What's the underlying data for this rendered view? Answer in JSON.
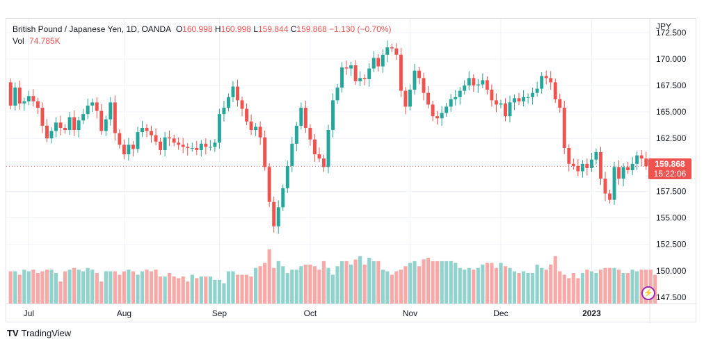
{
  "legend": {
    "symbol": "British Pound / Japanese Yen, 1D, OANDA",
    "open_label": "O",
    "open": "160.998",
    "high_label": "H",
    "high": "160.998",
    "low_label": "L",
    "low": "159.844",
    "close_label": "C",
    "close": "159.868",
    "change": "−1.130 (−0.70%)",
    "vol_label": "Vol",
    "vol": "74.785K"
  },
  "price_axis_currency": "JPY",
  "current": {
    "price": "159.868",
    "countdown": "15:22:06"
  },
  "branding": "TradingView",
  "colors": {
    "up": "#26a69a",
    "down": "#ef5350",
    "vol_up": "#92d2cc",
    "vol_down": "#f7a9a7"
  },
  "chart_data": {
    "type": "candlestick",
    "instrument": "GBP/JPY",
    "interval": "1D",
    "y_ticks": [
      172.5,
      170.0,
      167.5,
      165.0,
      162.5,
      160.0,
      157.5,
      155.0,
      152.5,
      150.0,
      147.5
    ],
    "ylim": [
      146.9,
      173.8
    ],
    "x_labels": [
      {
        "label": "Jul",
        "i": 4
      },
      {
        "label": "Aug",
        "i": 25
      },
      {
        "label": "Sep",
        "i": 46
      },
      {
        "label": "Oct",
        "i": 66
      },
      {
        "label": "Nov",
        "i": 88
      },
      {
        "label": "Dec",
        "i": 108
      },
      {
        "label": "2023",
        "i": 128
      }
    ],
    "last_price_line": 159.868,
    "closes": [
      165.6,
      167.3,
      165.8,
      166.0,
      166.5,
      166.0,
      165.4,
      163.7,
      162.5,
      163.2,
      164.0,
      163.5,
      163.3,
      164.5,
      163.3,
      164.2,
      164.8,
      165.6,
      165.9,
      165.1,
      163.2,
      164.3,
      165.9,
      163.0,
      161.9,
      161.0,
      161.9,
      161.5,
      163.1,
      163.5,
      163.2,
      162.8,
      162.2,
      161.4,
      162.6,
      162.5,
      162.1,
      161.9,
      161.7,
      161.6,
      161.6,
      161.4,
      162.0,
      161.7,
      161.7,
      162.1,
      164.8,
      165.4,
      166.4,
      167.4,
      166.1,
      165.3,
      164.1,
      163.3,
      163.6,
      162.6,
      159.8,
      156.5,
      154.2,
      156.0,
      157.8,
      159.9,
      162.0,
      163.7,
      165.4,
      163.5,
      162.4,
      161.0,
      160.6,
      159.8,
      163.3,
      166.1,
      167.3,
      169.2,
      169.1,
      169.4,
      167.9,
      168.2,
      168.1,
      169.1,
      170.1,
      169.3,
      170.4,
      171.1,
      171.0,
      170.4,
      167.0,
      165.5,
      167.1,
      168.9,
      168.2,
      166.8,
      165.7,
      164.6,
      164.4,
      164.9,
      165.5,
      166.2,
      166.4,
      167.0,
      167.5,
      168.2,
      167.5,
      167.6,
      168.0,
      167.1,
      166.1,
      165.7,
      165.8,
      164.6,
      165.9,
      166.3,
      166.0,
      166.4,
      166.4,
      166.8,
      167.2,
      168.4,
      168.2,
      167.8,
      166.2,
      165.4,
      161.6,
      160.1,
      159.9,
      159.4,
      160.1,
      159.7,
      160.5,
      161.2,
      158.7,
      157.3,
      156.7,
      159.8,
      158.7,
      159.8,
      159.5,
      160.1,
      160.9,
      160.6,
      159.868
    ],
    "open_first": 167.8,
    "volume_ylim": [
      0,
      45
    ],
    "volumes": [
      19,
      19,
      17,
      20,
      19,
      20,
      18,
      19,
      20,
      20,
      18,
      13,
      19,
      20,
      21,
      20,
      19,
      21,
      20,
      18,
      13,
      19,
      19,
      19,
      17,
      19,
      20,
      19,
      17,
      19,
      20,
      19,
      20,
      16,
      16,
      18,
      16,
      15,
      16,
      13,
      17,
      15,
      16,
      16,
      16,
      14,
      14,
      12,
      19,
      19,
      17,
      17,
      17,
      16,
      21,
      22,
      24,
      32,
      21,
      25,
      22,
      18,
      20,
      20,
      22,
      23,
      23,
      22,
      20,
      25,
      21,
      17,
      22,
      25,
      25,
      23,
      26,
      28,
      23,
      27,
      25,
      25,
      20,
      19,
      17,
      19,
      20,
      22,
      24,
      25,
      22,
      26,
      27,
      25,
      25,
      25,
      25,
      25,
      24,
      21,
      20,
      21,
      20,
      21,
      23,
      24,
      24,
      21,
      24,
      22,
      21,
      19,
      18,
      19,
      18,
      18,
      23,
      21,
      20,
      23,
      28,
      19,
      17,
      15,
      18,
      15,
      18,
      20,
      19,
      18,
      20,
      21,
      21,
      21,
      20,
      18,
      18,
      20,
      19,
      20,
      20,
      20,
      17
    ]
  }
}
